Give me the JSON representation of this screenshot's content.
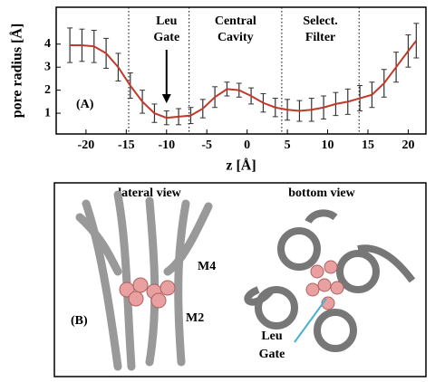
{
  "chart_data": {
    "type": "line",
    "y_label": "pore radius [Å]",
    "x_label": "z [Å]",
    "panel_label": "(A)",
    "x": [
      -22,
      -20.5,
      -19,
      -17.5,
      -16,
      -14.5,
      -13,
      -11.5,
      -10,
      -8.5,
      -7,
      -5.5,
      -4,
      -2.5,
      -1,
      0.5,
      2,
      3.5,
      5,
      6.5,
      8,
      9.5,
      11,
      12.5,
      14,
      15.5,
      17,
      18.5,
      20,
      21
    ],
    "values": [
      3.95,
      3.95,
      3.9,
      3.6,
      3.0,
      2.2,
      1.5,
      1.0,
      0.8,
      0.85,
      0.9,
      1.2,
      1.7,
      2.05,
      2.0,
      1.75,
      1.45,
      1.25,
      1.15,
      1.1,
      1.15,
      1.25,
      1.4,
      1.5,
      1.65,
      1.8,
      2.3,
      3.0,
      3.7,
      4.15
    ],
    "errors": [
      0.75,
      0.7,
      0.7,
      0.65,
      0.6,
      0.55,
      0.5,
      0.4,
      0.3,
      0.35,
      0.35,
      0.4,
      0.45,
      0.3,
      0.3,
      0.35,
      0.4,
      0.4,
      0.45,
      0.45,
      0.5,
      0.5,
      0.5,
      0.55,
      0.55,
      0.55,
      0.6,
      0.65,
      0.7,
      0.75
    ],
    "color": "#c0392b",
    "xlim": [
      -23.7,
      22.2
    ],
    "ylim": [
      0.1,
      5.6
    ],
    "xticks": [
      -20,
      -15,
      -10,
      -5,
      0,
      5,
      10,
      15,
      20
    ],
    "yticks": [
      1,
      2,
      3,
      4
    ],
    "dividers": [
      -14.7,
      -7.2,
      4.3,
      13.9
    ],
    "annotations": [
      [
        "Leu",
        "Gate"
      ],
      [
        "Central",
        "Cavity"
      ],
      [
        "Select.",
        "Filter"
      ]
    ],
    "arrow_at": -10
  },
  "panel_b": {
    "label": "(B)",
    "lateral": "lateral view",
    "bottom": "bottom view",
    "m4": "M4",
    "m2": "M2",
    "gate": [
      "Leu",
      "Gate"
    ]
  }
}
